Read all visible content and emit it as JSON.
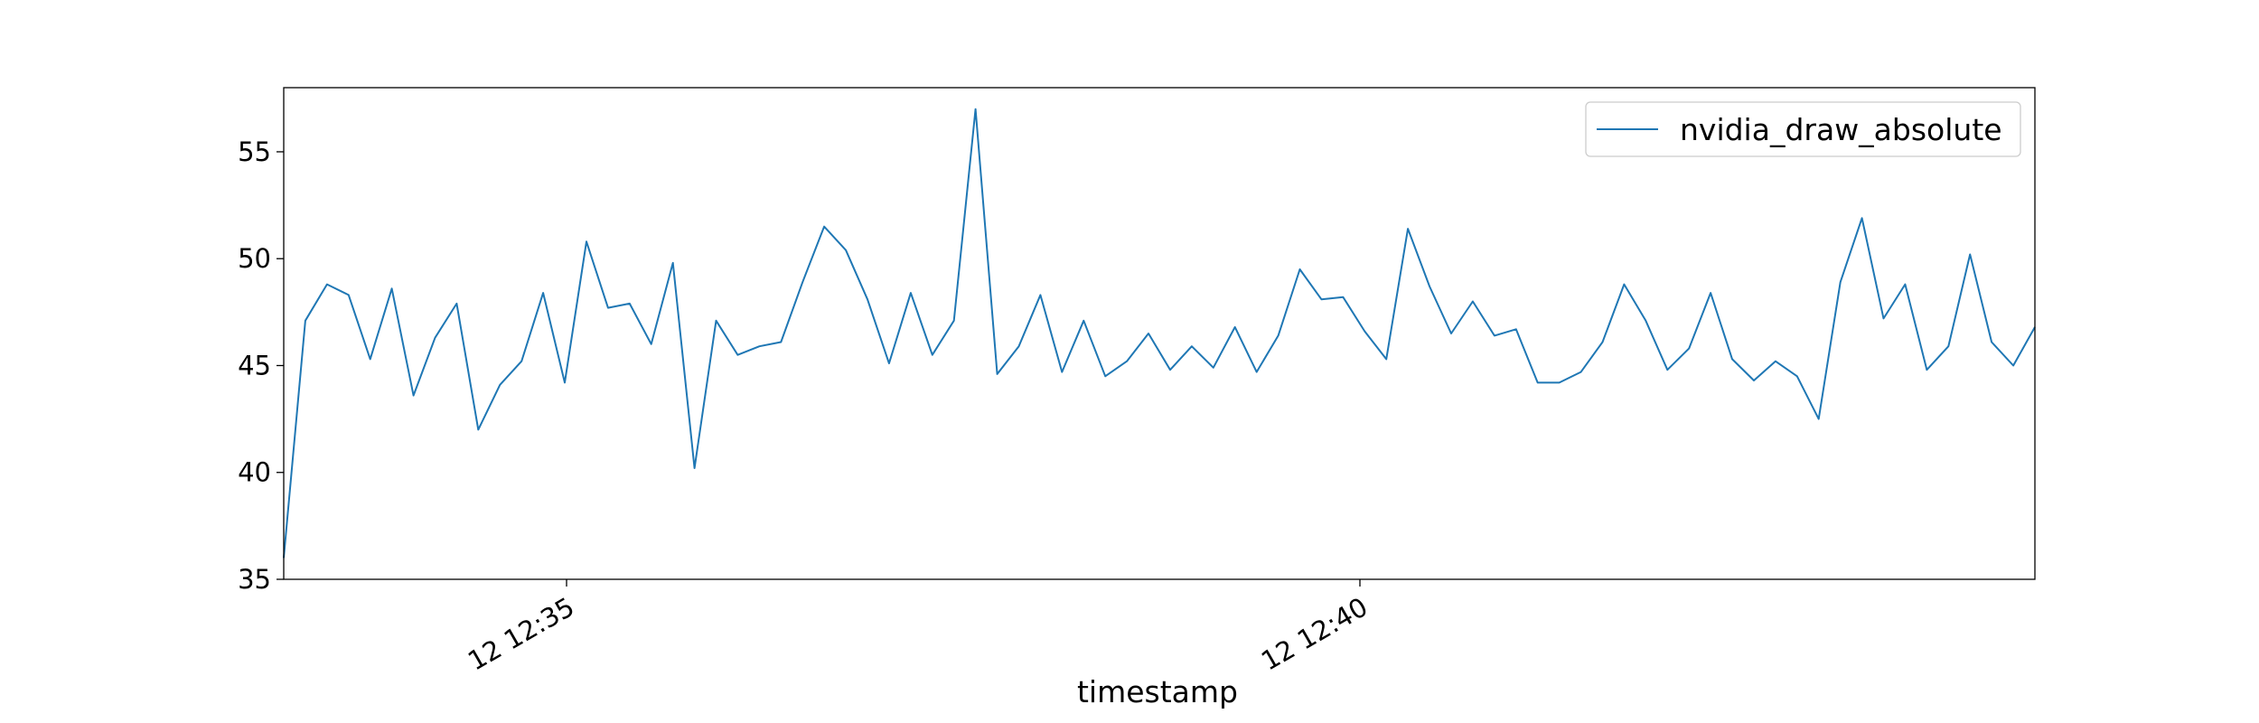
{
  "chart_data": {
    "type": "line",
    "title": "",
    "xlabel": "timestamp",
    "ylabel": "",
    "x_tick_labels": [
      "12 12:35",
      "12 12:40"
    ],
    "y_ticks": [
      35,
      40,
      45,
      50,
      55
    ],
    "ylim": [
      35,
      58
    ],
    "grid": false,
    "legend_position": "top-right",
    "series": [
      {
        "name": "nvidia_draw_absolute",
        "color": "#1f77b4",
        "values": [
          36.0,
          47.1,
          48.8,
          48.3,
          45.3,
          48.6,
          43.6,
          46.3,
          47.9,
          42.0,
          44.1,
          45.2,
          48.4,
          44.2,
          50.8,
          47.7,
          47.9,
          46.0,
          49.8,
          40.2,
          47.1,
          45.5,
          45.9,
          46.1,
          48.9,
          51.5,
          50.4,
          48.1,
          45.1,
          48.4,
          45.5,
          47.1,
          57.0,
          44.6,
          45.9,
          48.3,
          44.7,
          47.1,
          44.5,
          45.2,
          46.5,
          44.8,
          45.9,
          44.9,
          46.8,
          44.7,
          46.4,
          49.5,
          48.1,
          48.2,
          46.6,
          45.3,
          51.4,
          48.7,
          46.5,
          48.0,
          46.4,
          46.7,
          44.2,
          44.2,
          44.7,
          46.1,
          48.8,
          47.1,
          44.8,
          45.8,
          48.4,
          45.3,
          44.3,
          45.2,
          44.5,
          42.5,
          48.9,
          51.9,
          47.2,
          48.8,
          44.8,
          45.9,
          50.2,
          46.1,
          45.0,
          46.8
        ]
      }
    ]
  }
}
